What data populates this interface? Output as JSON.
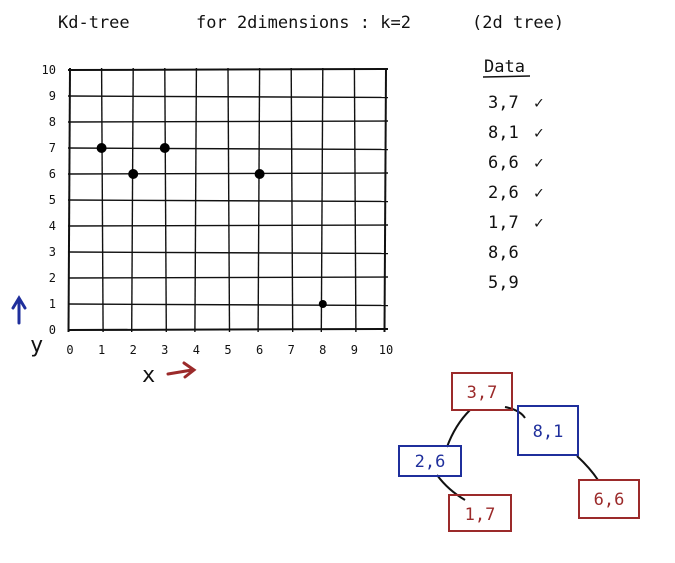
{
  "title": {
    "left": "Kd-tree",
    "right": "for 2dimensions : k=2",
    "paren": "(2d tree)"
  },
  "axes": {
    "x_label": "x",
    "y_label": "y",
    "x_ticks": [
      "0",
      "1",
      "2",
      "3",
      "4",
      "5",
      "6",
      "7",
      "8",
      "9",
      "10"
    ],
    "y_ticks": [
      "0",
      "1",
      "2",
      "3",
      "4",
      "5",
      "6",
      "7",
      "8",
      "9",
      "10"
    ]
  },
  "data_list": {
    "heading": "Data",
    "check": "✓",
    "items": [
      {
        "text": "3,7",
        "checked": true
      },
      {
        "text": "8,1",
        "checked": true
      },
      {
        "text": "6,6",
        "checked": true
      },
      {
        "text": "2,6",
        "checked": true
      },
      {
        "text": "1,7",
        "checked": true
      },
      {
        "text": "8,6",
        "checked": false
      },
      {
        "text": "5,9",
        "checked": false
      }
    ]
  },
  "chart_data": {
    "type": "scatter",
    "xlim": [
      0,
      10
    ],
    "ylim": [
      0,
      10
    ],
    "grid": true,
    "points": [
      {
        "x": 1,
        "y": 7
      },
      {
        "x": 2,
        "y": 6
      },
      {
        "x": 3,
        "y": 7
      },
      {
        "x": 6,
        "y": 6
      },
      {
        "x": 8,
        "y": 1
      }
    ]
  },
  "tree": {
    "nodes": [
      {
        "id": "root",
        "label": "3,7",
        "color": "#9b2a2a"
      },
      {
        "id": "n81",
        "label": "8,1",
        "color": "#1f2f9c"
      },
      {
        "id": "n26",
        "label": "2,6",
        "color": "#1f2f9c"
      },
      {
        "id": "n17",
        "label": "1,7",
        "color": "#9b2a2a"
      },
      {
        "id": "n66",
        "label": "6,6",
        "color": "#9b2a2a"
      }
    ]
  },
  "colors": {
    "ink": "#111111",
    "red": "#9b2a2a",
    "blue": "#1f2f9c"
  }
}
